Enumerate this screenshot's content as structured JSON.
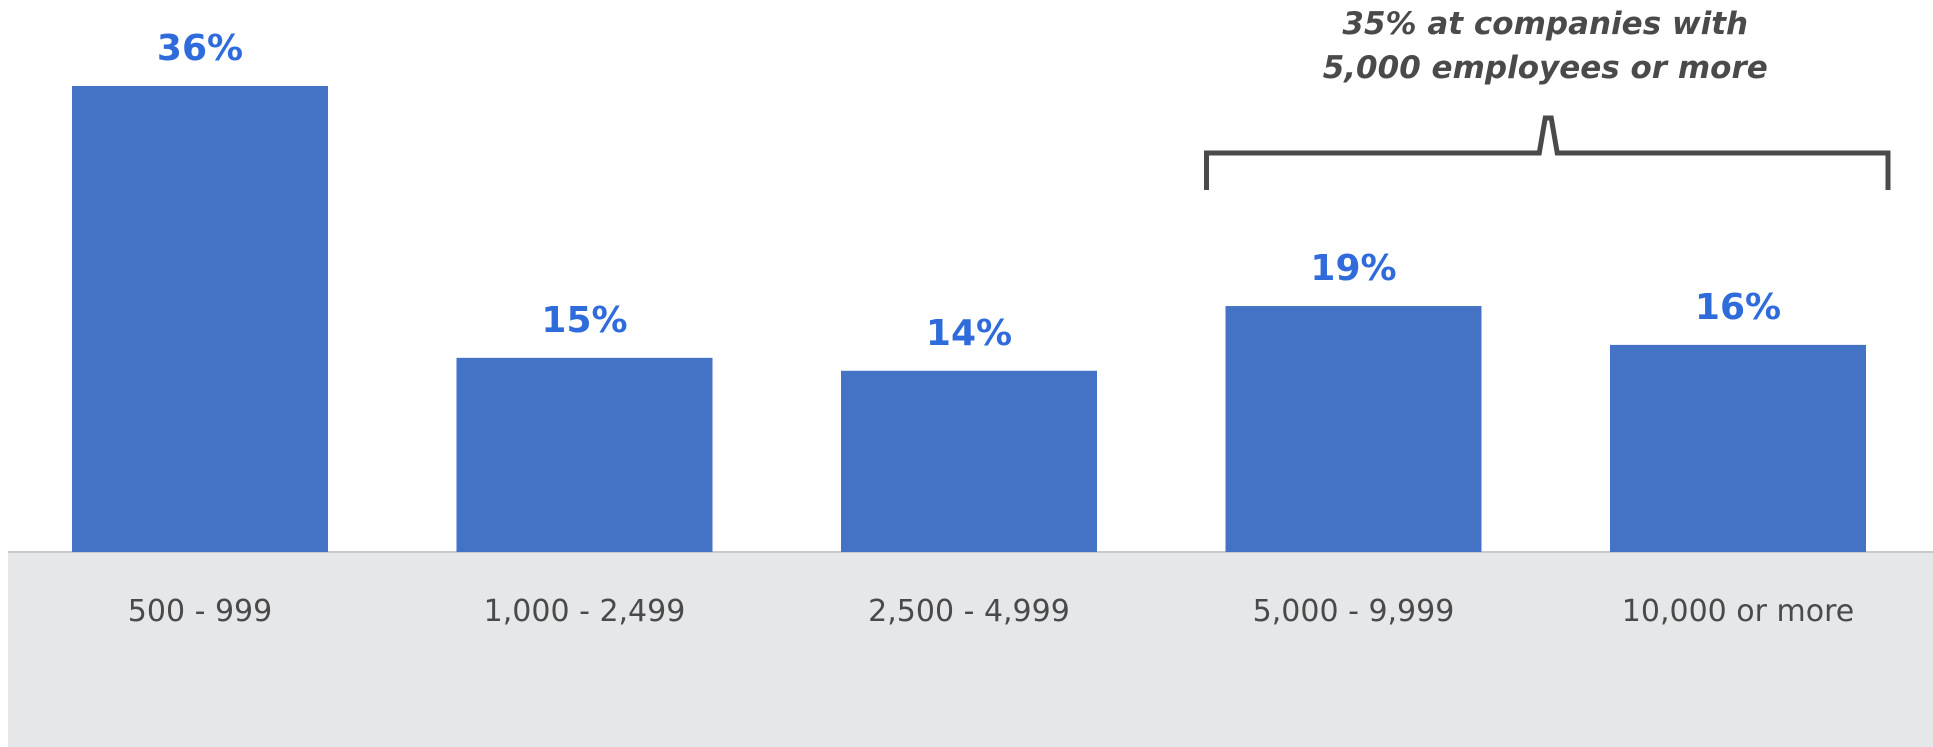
{
  "colors": {
    "bar": "#4472C4",
    "value_label": "#2F6BDA",
    "category_label": "#4A4A4A",
    "axis_band": "#E6E7E9",
    "baseline": "#C9CACC",
    "bracket": "#4A4A4A",
    "annotation": "#4A4A4A"
  },
  "chart_data": {
    "type": "bar",
    "categories": [
      "500 - 999",
      "1,000 - 2,499",
      "2,500 - 4,999",
      "5,000 - 9,999",
      "10,000 or more"
    ],
    "values": [
      36,
      15,
      14,
      19,
      16
    ],
    "value_labels": [
      "36%",
      "15%",
      "14%",
      "19%",
      "16%"
    ],
    "unit": "%",
    "title": "",
    "xlabel": "",
    "ylabel": "",
    "ylim": [
      0,
      36
    ],
    "grid": false,
    "legend": "none",
    "annotation": {
      "lines": [
        "35% at companies with",
        "5,000 employees or more"
      ],
      "spans_categories": [
        "5,000 - 9,999",
        "10,000 or more"
      ],
      "value": 35
    }
  }
}
